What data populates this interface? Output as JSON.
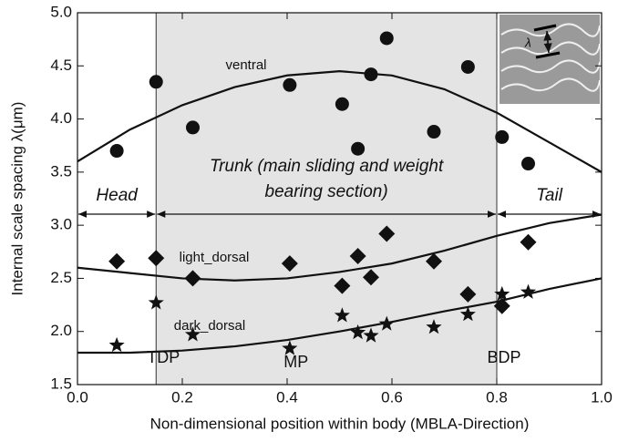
{
  "chart_data": {
    "type": "scatter",
    "xlabel": "Non-dimensional position within body (MBLA-Direction)",
    "ylabel": "Internal scale spacing λ(μm)",
    "xlim": [
      0,
      1
    ],
    "ylim": [
      1.5,
      5.0
    ],
    "xticks": [
      {
        "value": 0,
        "label": "0.0"
      },
      {
        "value": 0.2,
        "label": "0.2"
      },
      {
        "value": 0.4,
        "label": "0.4"
      },
      {
        "value": 0.6,
        "label": "0.6"
      },
      {
        "value": 0.8,
        "label": "0.8"
      },
      {
        "value": 1,
        "label": "1.0"
      }
    ],
    "yticks": [
      1.5,
      {
        "value": 2,
        "label": "2.0"
      },
      2.5,
      {
        "value": 3,
        "label": "3.0"
      },
      3.5,
      {
        "value": 4,
        "label": "4.0"
      },
      4.5,
      {
        "value": 5,
        "label": "5.0"
      }
    ],
    "fit_x": [
      0,
      0.1,
      0.2,
      0.3,
      0.4,
      0.5,
      0.6,
      0.7,
      0.8,
      0.9,
      1.0
    ],
    "series": [
      {
        "name": "ventral",
        "marker": "circle",
        "color": "#111111",
        "x": [
          0.075,
          0.15,
          0.22,
          0.405,
          0.505,
          0.535,
          0.56,
          0.59,
          0.68,
          0.745,
          0.81,
          0.86
        ],
        "values": [
          3.7,
          4.35,
          3.92,
          4.32,
          4.14,
          3.72,
          4.42,
          4.76,
          3.88,
          4.49,
          3.83,
          3.58
        ],
        "fit_values": [
          3.6,
          3.9,
          4.13,
          4.3,
          4.41,
          4.45,
          4.41,
          4.28,
          4.06,
          3.78,
          3.5
        ]
      },
      {
        "name": "light_dorsal",
        "marker": "diamond",
        "color": "#111111",
        "x": [
          0.075,
          0.15,
          0.22,
          0.405,
          0.505,
          0.535,
          0.56,
          0.59,
          0.68,
          0.745,
          0.81,
          0.86
        ],
        "values": [
          2.66,
          2.69,
          2.5,
          2.64,
          2.43,
          2.71,
          2.51,
          2.92,
          2.66,
          2.35,
          2.24,
          2.84
        ],
        "fit_values": [
          2.6,
          2.55,
          2.5,
          2.48,
          2.5,
          2.56,
          2.64,
          2.76,
          2.9,
          3.02,
          3.1
        ]
      },
      {
        "name": "dark_dorsal",
        "marker": "star",
        "color": "#111111",
        "x": [
          0.075,
          0.15,
          0.22,
          0.405,
          0.505,
          0.535,
          0.56,
          0.59,
          0.68,
          0.745,
          0.81,
          0.86
        ],
        "values": [
          1.87,
          2.27,
          1.97,
          1.84,
          2.15,
          1.99,
          1.96,
          2.07,
          2.04,
          2.16,
          2.35,
          2.37
        ],
        "fit_values": [
          1.8,
          1.8,
          1.82,
          1.86,
          1.92,
          2.0,
          2.09,
          2.19,
          2.28,
          2.4,
          2.5
        ]
      }
    ],
    "regions": [
      {
        "label": "Head",
        "x": [
          0,
          0.15
        ]
      },
      {
        "label_lines": [
          "Trunk (main sliding and weight",
          "bearing section)"
        ],
        "x": [
          0.15,
          0.8
        ]
      },
      {
        "label": "Tail",
        "x": [
          0.8,
          1
        ]
      }
    ],
    "points": [
      {
        "label": "TDP",
        "x": 0.15
      },
      {
        "label": "MP",
        "x": 0.41
      },
      {
        "label": "BDP",
        "x": 0.8
      }
    ],
    "inset_label": "λ"
  }
}
